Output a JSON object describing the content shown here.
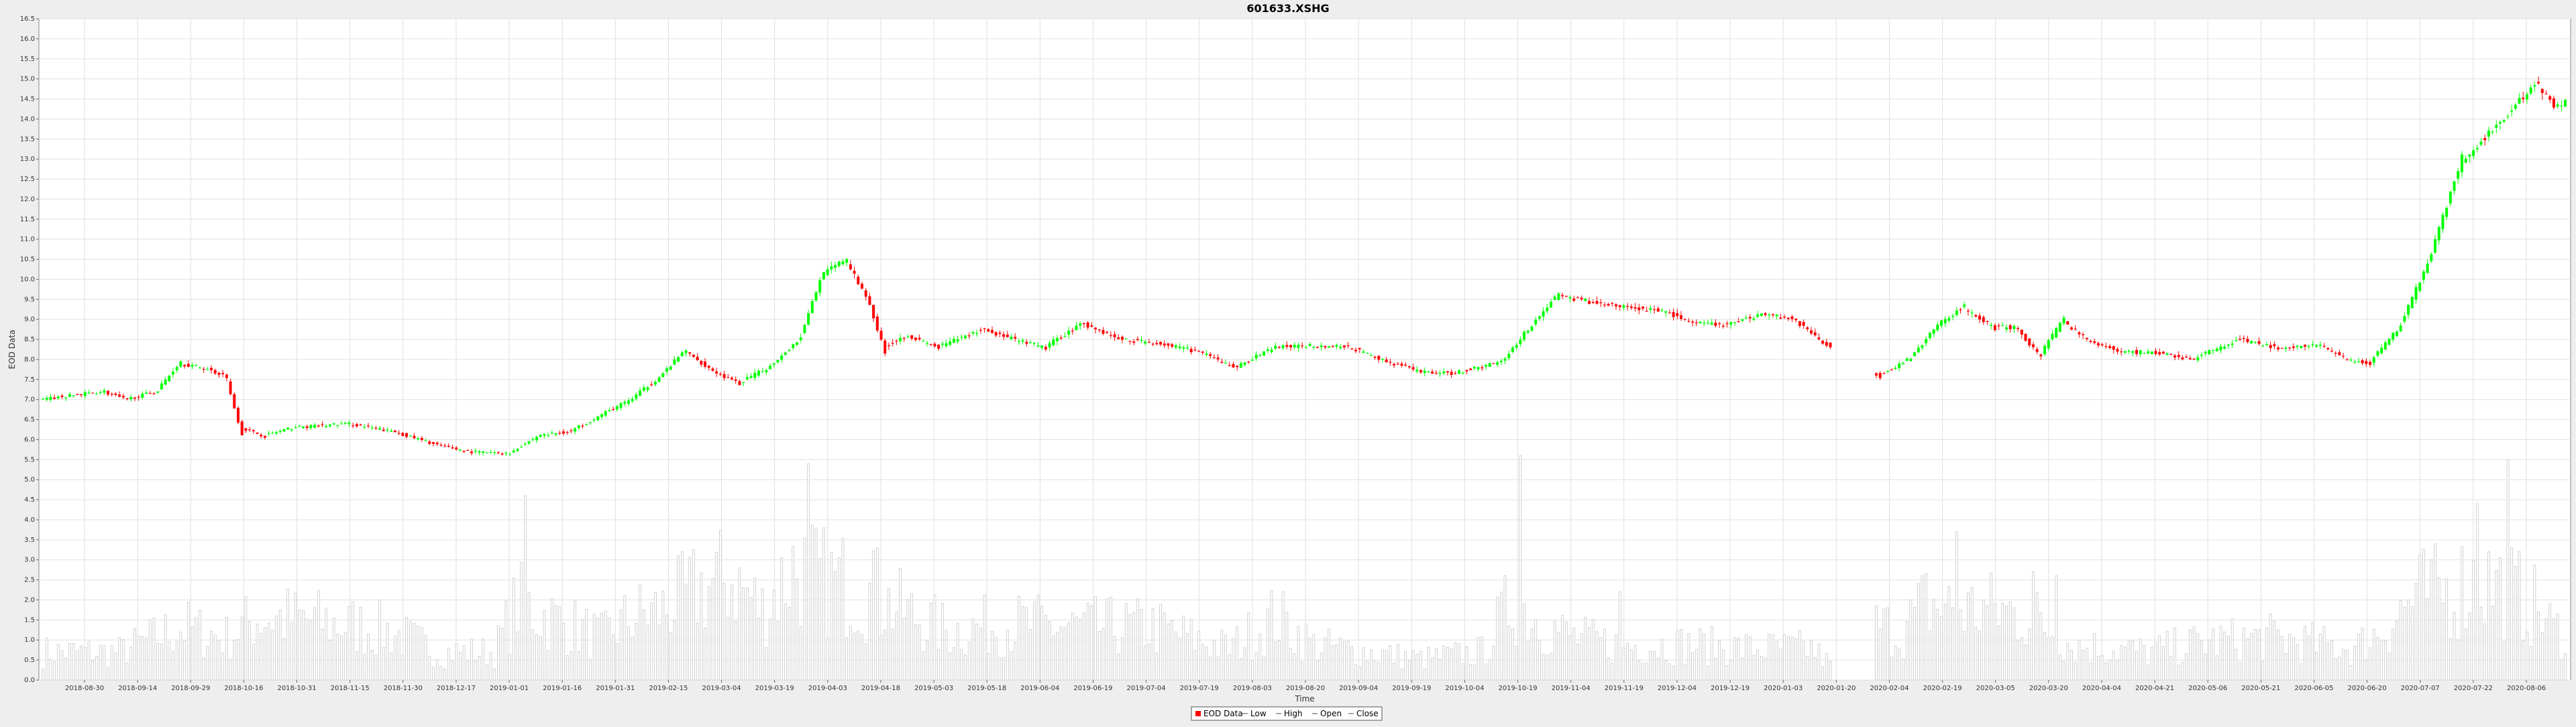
{
  "chart_data": {
    "type": "candlestick",
    "title": "601633.XSHG",
    "xlabel": "Time",
    "ylabel": "EOD Data",
    "ylim": [
      0.0,
      16.5
    ],
    "yticks": [
      "0.0",
      "0.5",
      "1.0",
      "1.5",
      "2.0",
      "2.5",
      "3.0",
      "3.5",
      "4.0",
      "4.5",
      "5.0",
      "5.5",
      "6.0",
      "6.5",
      "7.0",
      "7.5",
      "8.0",
      "8.5",
      "9.0",
      "9.5",
      "10.0",
      "10.5",
      "11.0",
      "11.5",
      "12.0",
      "12.5",
      "13.0",
      "13.5",
      "14.0",
      "14.5",
      "15.0",
      "15.5",
      "16.0",
      "16.5"
    ],
    "xticks": [
      "2018-08-30",
      "2018-09-14",
      "2018-09-29",
      "2018-10-16",
      "2018-10-31",
      "2018-11-15",
      "2018-11-30",
      "2018-12-17",
      "2019-01-01",
      "2019-01-16",
      "2019-01-31",
      "2019-02-15",
      "2019-03-04",
      "2019-03-19",
      "2019-04-03",
      "2019-04-18",
      "2019-05-03",
      "2019-05-18",
      "2019-06-04",
      "2019-06-19",
      "2019-07-04",
      "2019-07-19",
      "2019-08-03",
      "2019-08-20",
      "2019-09-04",
      "2019-09-19",
      "2019-10-04",
      "2019-10-19",
      "2019-11-04",
      "2019-11-19",
      "2019-12-04",
      "2019-12-19",
      "2020-01-03",
      "2020-01-20",
      "2020-02-04",
      "2020-02-19",
      "2020-03-05",
      "2020-03-20",
      "2020-04-04",
      "2020-04-21",
      "2020-05-06",
      "2020-05-21",
      "2020-06-05",
      "2020-06-20",
      "2020-07-07",
      "2020-07-22",
      "2020-08-06"
    ],
    "grid": true,
    "legend_position": "bottom-center",
    "legend": [
      "EOD Data",
      "Low",
      "High",
      "Open",
      "Close"
    ],
    "colors": {
      "up": "#00ff00",
      "down": "#ff0000",
      "volume": "#c8c8c8",
      "grid": "#e0e0e0",
      "plot_bg": "#ffffff",
      "page_bg": "#eeeeee"
    },
    "path_keys": [
      [
        0,
        7.0
      ],
      [
        8,
        7.1
      ],
      [
        16,
        7.2
      ],
      [
        22,
        7.0
      ],
      [
        30,
        7.2
      ],
      [
        36,
        7.9
      ],
      [
        42,
        7.8
      ],
      [
        48,
        7.6
      ],
      [
        52,
        6.3
      ],
      [
        58,
        6.1
      ],
      [
        66,
        6.3
      ],
      [
        80,
        6.4
      ],
      [
        92,
        6.2
      ],
      [
        104,
        5.85
      ],
      [
        112,
        5.7
      ],
      [
        122,
        5.65
      ],
      [
        130,
        6.1
      ],
      [
        138,
        6.2
      ],
      [
        146,
        6.6
      ],
      [
        154,
        7.0
      ],
      [
        162,
        7.6
      ],
      [
        168,
        8.2
      ],
      [
        176,
        7.7
      ],
      [
        182,
        7.4
      ],
      [
        190,
        7.8
      ],
      [
        198,
        8.5
      ],
      [
        204,
        10.1
      ],
      [
        210,
        10.5
      ],
      [
        216,
        9.5
      ],
      [
        220,
        8.3
      ],
      [
        226,
        8.6
      ],
      [
        234,
        8.3
      ],
      [
        246,
        8.75
      ],
      [
        254,
        8.5
      ],
      [
        262,
        8.3
      ],
      [
        272,
        8.9
      ],
      [
        282,
        8.5
      ],
      [
        292,
        8.4
      ],
      [
        302,
        8.2
      ],
      [
        312,
        7.8
      ],
      [
        322,
        8.3
      ],
      [
        332,
        8.35
      ],
      [
        342,
        8.3
      ],
      [
        350,
        8.0
      ],
      [
        360,
        7.7
      ],
      [
        368,
        7.65
      ],
      [
        376,
        7.8
      ],
      [
        382,
        8.0
      ],
      [
        388,
        8.7
      ],
      [
        396,
        9.6
      ],
      [
        404,
        9.45
      ],
      [
        414,
        9.3
      ],
      [
        424,
        9.2
      ],
      [
        432,
        8.9
      ],
      [
        440,
        8.85
      ],
      [
        450,
        9.15
      ],
      [
        458,
        9.0
      ],
      [
        466,
        8.4
      ],
      [
        480,
        7.6
      ],
      [
        488,
        8.0
      ],
      [
        496,
        8.9
      ],
      [
        502,
        9.3
      ],
      [
        510,
        8.8
      ],
      [
        516,
        8.8
      ],
      [
        522,
        8.1
      ],
      [
        528,
        8.95
      ],
      [
        536,
        8.4
      ],
      [
        544,
        8.2
      ],
      [
        554,
        8.15
      ],
      [
        562,
        8.0
      ],
      [
        574,
        8.5
      ],
      [
        584,
        8.3
      ],
      [
        596,
        8.35
      ],
      [
        602,
        8.0
      ],
      [
        608,
        7.9
      ],
      [
        616,
        8.8
      ],
      [
        624,
        10.5
      ],
      [
        632,
        12.9
      ],
      [
        638,
        13.5
      ],
      [
        646,
        14.3
      ],
      [
        652,
        14.9
      ],
      [
        656,
        14.4
      ]
    ],
    "gaps": [
      [
        468,
        478
      ]
    ],
    "vol_keys": [
      [
        0,
        0.8
      ],
      [
        20,
        0.8
      ],
      [
        36,
        1.5
      ],
      [
        48,
        1.2
      ],
      [
        56,
        1.8
      ],
      [
        70,
        1.7
      ],
      [
        90,
        1.4
      ],
      [
        104,
        0.8
      ],
      [
        118,
        0.8
      ],
      [
        124,
        2.2
      ],
      [
        132,
        1.8
      ],
      [
        146,
        1.2
      ],
      [
        154,
        1.8
      ],
      [
        162,
        2.0
      ],
      [
        172,
        2.6
      ],
      [
        180,
        2.9
      ],
      [
        188,
        2.0
      ],
      [
        196,
        3.2
      ],
      [
        204,
        2.8
      ],
      [
        212,
        2.7
      ],
      [
        222,
        2.1
      ],
      [
        236,
        1.4
      ],
      [
        252,
        1.6
      ],
      [
        270,
        1.5
      ],
      [
        290,
        1.5
      ],
      [
        310,
        0.9
      ],
      [
        322,
        1.8
      ],
      [
        332,
        1.0
      ],
      [
        346,
        0.8
      ],
      [
        360,
        0.6
      ],
      [
        376,
        0.8
      ],
      [
        384,
        2.3
      ],
      [
        392,
        1.6
      ],
      [
        400,
        1.2
      ],
      [
        412,
        1.0
      ],
      [
        430,
        1.0
      ],
      [
        446,
        0.9
      ],
      [
        462,
        0.9
      ],
      [
        472,
        0.0
      ],
      [
        476,
        1.6
      ],
      [
        486,
        1.4
      ],
      [
        492,
        2.2
      ],
      [
        500,
        2.0
      ],
      [
        510,
        2.0
      ],
      [
        520,
        1.8
      ],
      [
        530,
        1.0
      ],
      [
        550,
        0.8
      ],
      [
        566,
        1.1
      ],
      [
        582,
        1.2
      ],
      [
        596,
        1.0
      ],
      [
        604,
        0.9
      ],
      [
        612,
        1.5
      ],
      [
        620,
        2.4
      ],
      [
        628,
        2.5
      ],
      [
        636,
        2.9
      ],
      [
        644,
        2.6
      ],
      [
        652,
        2.0
      ],
      [
        656,
        1.4
      ]
    ],
    "vol_spikes": [
      [
        126,
        4.6
      ],
      [
        200,
        5.4
      ],
      [
        218,
        3.3
      ],
      [
        386,
        5.6
      ],
      [
        412,
        2.2
      ],
      [
        500,
        3.7
      ],
      [
        520,
        2.7
      ],
      [
        526,
        2.6
      ],
      [
        644,
        5.5
      ],
      [
        636,
        4.4
      ]
    ]
  }
}
